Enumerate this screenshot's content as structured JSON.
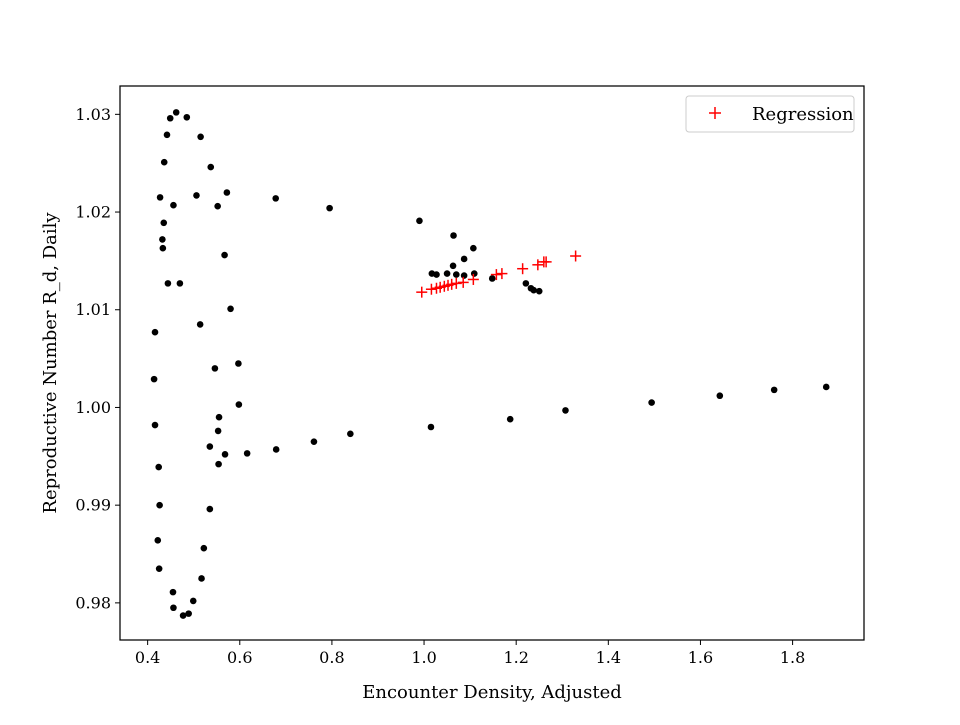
{
  "chart_data": {
    "type": "scatter",
    "xlabel": "Encounter Density, Adjusted",
    "ylabel": "Reproductive Number R_d, Daily",
    "xlim": [
      0.34,
      1.955
    ],
    "ylim": [
      0.9762,
      1.0329
    ],
    "xticks": [
      0.4,
      0.6,
      0.8,
      1.0,
      1.2,
      1.4,
      1.6,
      1.8
    ],
    "xtick_labels": [
      "0.4",
      "0.6",
      "0.8",
      "1.0",
      "1.2",
      "1.4",
      "1.6",
      "1.8"
    ],
    "yticks": [
      0.98,
      0.99,
      1.0,
      1.01,
      1.02,
      1.03
    ],
    "ytick_labels": [
      "0.98",
      "0.99",
      "1.00",
      "1.01",
      "1.02",
      "1.03"
    ],
    "grid": false,
    "legend": {
      "position": "top-right",
      "entries": [
        "Regression"
      ]
    },
    "colors": {
      "data": "#000000",
      "regression": "#ff0000"
    },
    "series": [
      {
        "marker": "dot",
        "color": "#000000",
        "points": [
          [
            0.462,
            1.0302
          ],
          [
            0.485,
            1.0297
          ],
          [
            0.449,
            1.0296
          ],
          [
            0.442,
            1.0279
          ],
          [
            0.515,
            1.0277
          ],
          [
            0.436,
            1.0251
          ],
          [
            0.537,
            1.0246
          ],
          [
            0.427,
            1.0215
          ],
          [
            0.506,
            1.0217
          ],
          [
            0.572,
            1.022
          ],
          [
            0.456,
            1.0207
          ],
          [
            0.552,
            1.0206
          ],
          [
            0.435,
            1.0189
          ],
          [
            0.432,
            1.0172
          ],
          [
            0.433,
            1.0163
          ],
          [
            0.567,
            1.0156
          ],
          [
            0.444,
            1.0127
          ],
          [
            0.47,
            1.0127
          ],
          [
            0.58,
            1.0101
          ],
          [
            0.514,
            1.0085
          ],
          [
            0.416,
            1.0077
          ],
          [
            0.597,
            1.0045
          ],
          [
            0.546,
            1.004
          ],
          [
            0.414,
            1.0029
          ],
          [
            0.598,
            1.0003
          ],
          [
            0.555,
            0.999
          ],
          [
            0.416,
            0.9982
          ],
          [
            0.553,
            0.9976
          ],
          [
            0.535,
            0.996
          ],
          [
            0.568,
            0.9952
          ],
          [
            0.554,
            0.9942
          ],
          [
            0.424,
            0.9939
          ],
          [
            0.426,
            0.99
          ],
          [
            0.535,
            0.9896
          ],
          [
            0.522,
            0.9856
          ],
          [
            0.422,
            0.9864
          ],
          [
            0.425,
            0.9835
          ],
          [
            0.517,
            0.9825
          ],
          [
            0.455,
            0.9811
          ],
          [
            0.499,
            0.9802
          ],
          [
            0.456,
            0.9795
          ],
          [
            0.489,
            0.9789
          ],
          [
            0.477,
            0.9787
          ],
          [
            0.616,
            0.9953
          ],
          [
            0.679,
            0.9957
          ],
          [
            0.761,
            0.9965
          ],
          [
            0.84,
            0.9973
          ],
          [
            1.015,
            0.998
          ],
          [
            1.187,
            0.9988
          ],
          [
            1.307,
            0.9997
          ],
          [
            1.494,
            1.0005
          ],
          [
            1.642,
            1.0012
          ],
          [
            1.76,
            1.0018
          ],
          [
            1.873,
            1.0021
          ],
          [
            0.678,
            1.0214
          ],
          [
            0.795,
            1.0204
          ],
          [
            0.99,
            1.0191
          ],
          [
            1.064,
            1.0176
          ],
          [
            1.107,
            1.0163
          ],
          [
            1.087,
            1.0152
          ],
          [
            1.063,
            1.0145
          ],
          [
            1.017,
            1.0137
          ],
          [
            1.027,
            1.0136
          ],
          [
            1.05,
            1.0137
          ],
          [
            1.07,
            1.0136
          ],
          [
            1.087,
            1.0135
          ],
          [
            1.109,
            1.0137
          ],
          [
            1.148,
            1.0132
          ],
          [
            1.221,
            1.0127
          ],
          [
            1.232,
            1.0122
          ],
          [
            1.238,
            1.012
          ],
          [
            1.25,
            1.0119
          ]
        ]
      },
      {
        "name": "Regression",
        "marker": "plus",
        "color": "#ff0000",
        "points": [
          [
            0.995,
            1.0118
          ],
          [
            1.016,
            1.0121
          ],
          [
            1.027,
            1.0122
          ],
          [
            1.035,
            1.0123
          ],
          [
            1.044,
            1.0124
          ],
          [
            1.052,
            1.0125
          ],
          [
            1.06,
            1.0126
          ],
          [
            1.07,
            1.0127
          ],
          [
            1.085,
            1.0128
          ],
          [
            1.107,
            1.0131
          ],
          [
            1.157,
            1.0136
          ],
          [
            1.169,
            1.0137
          ],
          [
            1.214,
            1.0142
          ],
          [
            1.247,
            1.0146
          ],
          [
            1.26,
            1.0149
          ],
          [
            1.265,
            1.0149
          ],
          [
            1.329,
            1.0155
          ]
        ]
      }
    ]
  }
}
